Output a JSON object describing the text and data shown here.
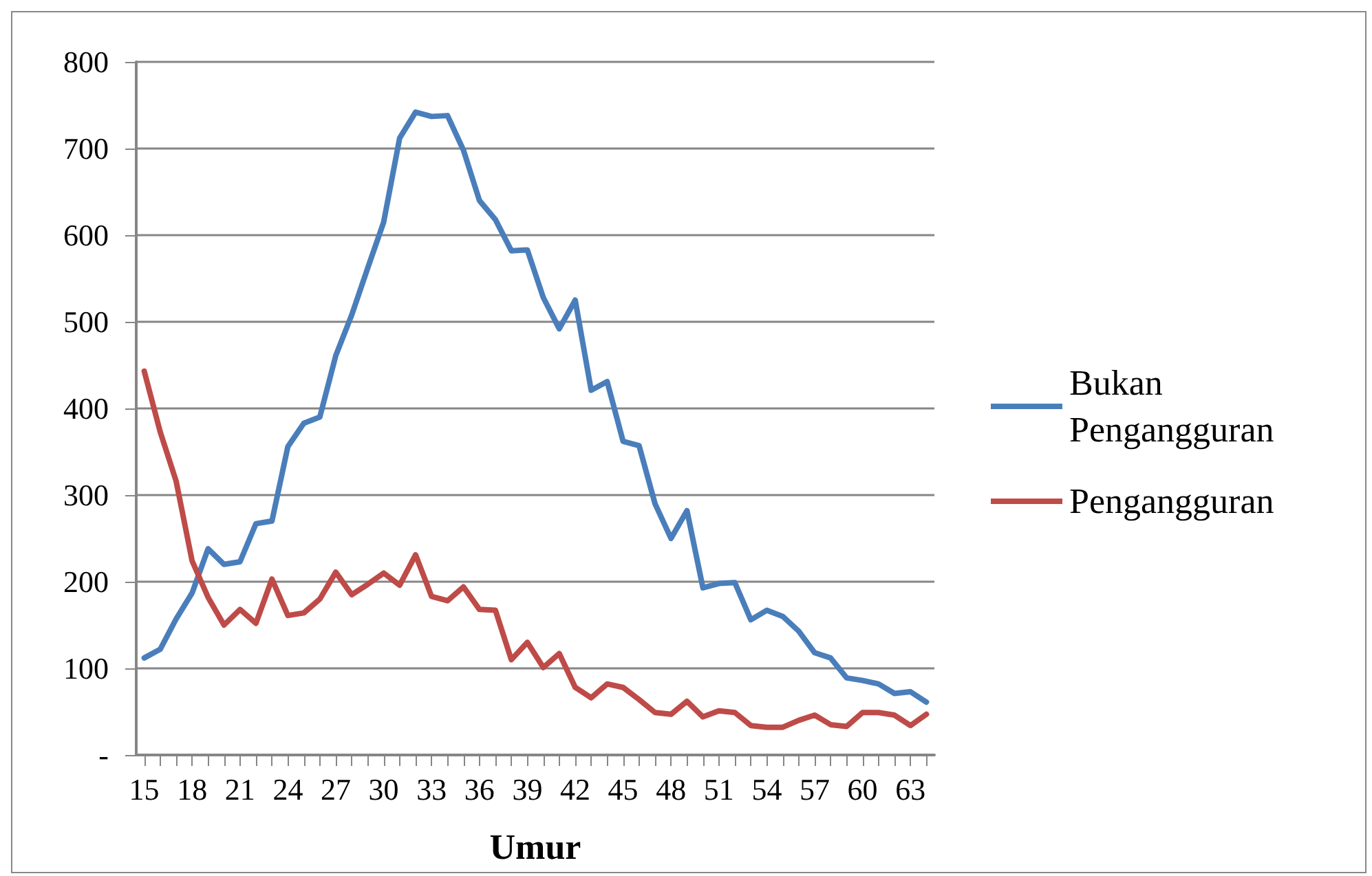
{
  "chart_data": {
    "type": "line",
    "xlabel": "Umur",
    "categories": [
      "15",
      null,
      null,
      "18",
      null,
      null,
      "21",
      null,
      null,
      "24",
      null,
      null,
      "27",
      null,
      null,
      "30",
      null,
      null,
      "33",
      null,
      null,
      "36",
      null,
      null,
      "39",
      null,
      null,
      "42",
      null,
      null,
      "45",
      null,
      null,
      "48",
      null,
      null,
      "51",
      null,
      null,
      "54",
      null,
      null,
      "57",
      null,
      null,
      "60",
      null,
      null,
      "63",
      null
    ],
    "series": [
      {
        "name": "Bukan Pengangguran",
        "color": "#4a7ebb",
        "values": [
          112,
          122,
          157,
          187,
          238,
          220,
          223,
          267,
          270,
          356,
          383,
          390,
          461,
          508,
          562,
          615,
          712,
          742,
          737,
          738,
          698,
          640,
          618,
          582,
          583,
          528,
          492,
          525,
          421,
          431,
          362,
          357,
          290,
          250,
          282,
          193,
          198,
          199,
          156,
          167,
          160,
          143,
          118,
          112,
          89,
          86,
          82,
          71,
          73,
          61
        ]
      },
      {
        "name": "Pengangguran",
        "color": "#be4b48",
        "values": [
          443,
          373,
          316,
          224,
          182,
          150,
          168,
          152,
          203,
          161,
          164,
          180,
          211,
          185,
          197,
          210,
          196,
          231,
          183,
          178,
          194,
          168,
          167,
          110,
          130,
          101,
          117,
          78,
          66,
          82,
          78,
          64,
          49,
          47,
          62,
          44,
          51,
          49,
          34,
          32,
          32,
          40,
          46,
          35,
          33,
          49,
          49,
          46,
          34,
          47
        ]
      }
    ],
    "ylim": [
      0,
      800
    ],
    "yticks": [
      {
        "value": 0,
        "label": "-"
      },
      100,
      200,
      300,
      400,
      500,
      600,
      700,
      800
    ],
    "grid": "y",
    "legend": "right",
    "marker": "none",
    "line_style": "solid"
  }
}
